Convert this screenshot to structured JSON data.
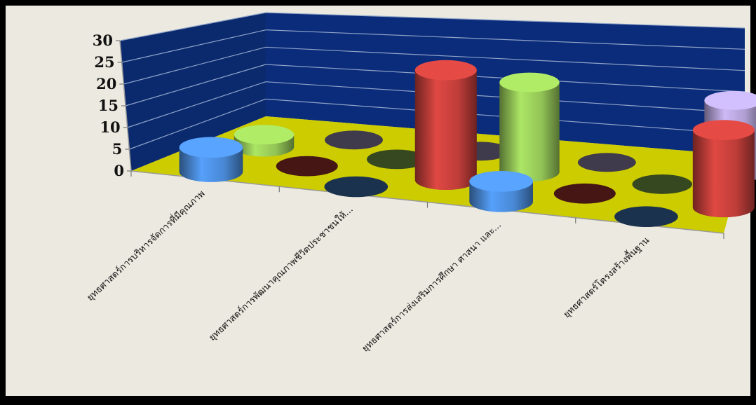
{
  "colors": {
    "background": "#000000",
    "plot_area": "#ECEAE0",
    "back_wall": "#0A2C7A",
    "side_wall": "#0B2A6E",
    "floor": "#CCCC00",
    "gridline": "#8FA3C8"
  },
  "chart_data": {
    "type": "bar",
    "subtype": "3d-cylinder",
    "title": "",
    "xlabel": "",
    "ylabel": "",
    "ylim": [
      0,
      30
    ],
    "yticks": [
      "0",
      "5",
      "10",
      "15",
      "20",
      "25",
      "30"
    ],
    "categories": [
      "ยุทธศาสตร์การบริหารจัดการที่มีคุณภาพ",
      "ยุทธศาสตร์การพัฒนาคุณภาพชีวิตประชาชนให้...",
      "ยุทธศาสตร์การส่งเสริมการศึกษา ศาสนา และ...",
      "ยุทธศาสตร์โครงสร้างพื้นฐาน"
    ],
    "series": [
      {
        "color": "#4D8FE0",
        "values": [
          6,
          0,
          5,
          0
        ]
      },
      {
        "color": "#C8403C",
        "values": [
          0,
          27,
          0,
          19
        ]
      },
      {
        "color": "#9ACD5A",
        "values": [
          3,
          0,
          22,
          0
        ]
      },
      {
        "color": "#B7A6DC",
        "values": [
          0,
          0,
          0,
          18
        ]
      }
    ],
    "grid": true,
    "legend": "none"
  }
}
